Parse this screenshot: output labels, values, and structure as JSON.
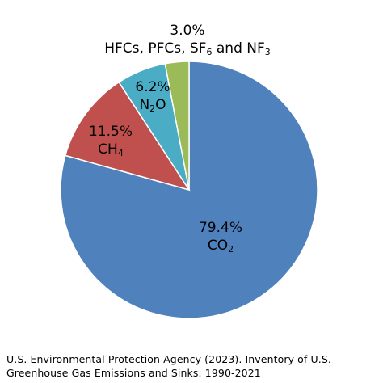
{
  "chart_data": {
    "type": "pie",
    "unit": "%",
    "slices": [
      {
        "value": 79.4,
        "value_label": "79.4%",
        "name": "CO",
        "subscript": "2",
        "name_suffix": "",
        "color": "#4f81bd"
      },
      {
        "value": 11.5,
        "value_label": "11.5%",
        "name": "CH",
        "subscript": "4",
        "name_suffix": "",
        "color": "#c0504d"
      },
      {
        "value": 6.2,
        "value_label": "6.2%",
        "name": "N",
        "subscript": "2",
        "name_suffix": "O",
        "color": "#4bacc6"
      },
      {
        "value": 3.0,
        "value_label": "3.0%",
        "name": "HFCs, PFCs, SF",
        "subscript": "6",
        "name_suffix": " and NF",
        "subscript2": "3",
        "color": "#9bbb59"
      }
    ],
    "start_angle_deg": 0,
    "direction": "clockwise"
  },
  "source": {
    "line1": "U.S. Environmental Protection Agency (2023). Inventory of U.S.",
    "line2": "Greenhouse Gas Emissions and Sinks: 1990-2021"
  }
}
